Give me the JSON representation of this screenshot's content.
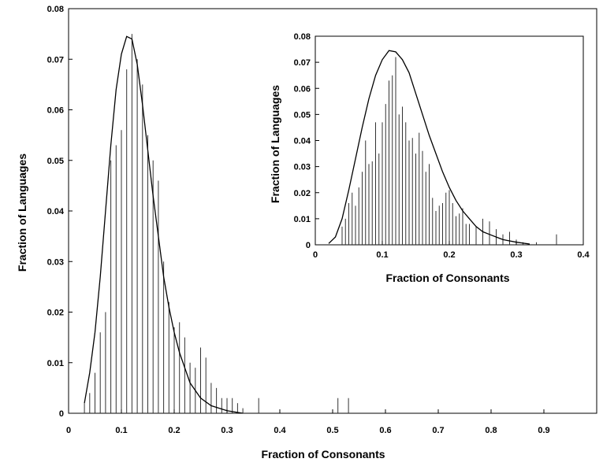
{
  "chart_data": [
    {
      "type": "bar",
      "panel": "main",
      "title": "",
      "xlabel": "Fraction of Consonants",
      "ylabel": "Fraction of Languages",
      "xlim": [
        0,
        1
      ],
      "ylim": [
        0,
        0.08
      ],
      "xticks": [
        "0",
        "0.1",
        "0.2",
        "0.3",
        "0.4",
        "0.5",
        "0.6",
        "0.7",
        "0.8",
        "0.9"
      ],
      "yticks": [
        "0",
        "0.01",
        "0.02",
        "0.03",
        "0.04",
        "0.05",
        "0.06",
        "0.07",
        "0.08"
      ],
      "grid": false,
      "series": [
        {
          "kind": "bars",
          "x": [
            0.03,
            0.04,
            0.05,
            0.06,
            0.07,
            0.08,
            0.09,
            0.1,
            0.11,
            0.12,
            0.13,
            0.14,
            0.15,
            0.16,
            0.17,
            0.18,
            0.19,
            0.2,
            0.21,
            0.22,
            0.23,
            0.24,
            0.25,
            0.26,
            0.27,
            0.28,
            0.29,
            0.3,
            0.31,
            0.32,
            0.33,
            0.36,
            0.51,
            0.53
          ],
          "y": [
            0.002,
            0.004,
            0.008,
            0.016,
            0.02,
            0.05,
            0.053,
            0.056,
            0.068,
            0.075,
            0.07,
            0.065,
            0.055,
            0.05,
            0.046,
            0.03,
            0.022,
            0.017,
            0.018,
            0.015,
            0.01,
            0.009,
            0.013,
            0.011,
            0.006,
            0.005,
            0.003,
            0.003,
            0.003,
            0.002,
            0.001,
            0.003,
            0.003,
            0.003
          ]
        },
        {
          "kind": "line",
          "x": [
            0.03,
            0.04,
            0.05,
            0.06,
            0.07,
            0.08,
            0.09,
            0.1,
            0.11,
            0.12,
            0.13,
            0.14,
            0.15,
            0.16,
            0.17,
            0.18,
            0.19,
            0.2,
            0.21,
            0.22,
            0.23,
            0.25,
            0.27,
            0.3,
            0.33
          ],
          "y": [
            0.002,
            0.008,
            0.016,
            0.027,
            0.04,
            0.053,
            0.064,
            0.071,
            0.0745,
            0.074,
            0.069,
            0.061,
            0.052,
            0.043,
            0.035,
            0.027,
            0.021,
            0.016,
            0.012,
            0.009,
            0.006,
            0.003,
            0.0015,
            0.0005,
            0
          ]
        }
      ]
    },
    {
      "type": "bar",
      "panel": "inset",
      "title": "",
      "xlabel": "Fraction of Consonants",
      "ylabel": "Fraction of Languages",
      "xlim": [
        0,
        0.4
      ],
      "ylim": [
        0,
        0.08
      ],
      "xticks": [
        "0",
        "0.1",
        "0.2",
        "0.3",
        "0.4"
      ],
      "yticks": [
        "0",
        "0.01",
        "0.02",
        "0.03",
        "0.04",
        "0.05",
        "0.06",
        "0.07",
        "0.08"
      ],
      "grid": false,
      "series": [
        {
          "kind": "bars",
          "x": [
            0.04,
            0.045,
            0.05,
            0.055,
            0.06,
            0.065,
            0.07,
            0.075,
            0.08,
            0.085,
            0.09,
            0.095,
            0.1,
            0.105,
            0.11,
            0.115,
            0.12,
            0.125,
            0.13,
            0.135,
            0.14,
            0.145,
            0.15,
            0.155,
            0.16,
            0.165,
            0.17,
            0.175,
            0.18,
            0.185,
            0.19,
            0.195,
            0.2,
            0.205,
            0.21,
            0.215,
            0.22,
            0.225,
            0.23,
            0.24,
            0.25,
            0.26,
            0.27,
            0.28,
            0.29,
            0.3,
            0.31,
            0.33,
            0.36
          ],
          "y": [
            0.007,
            0.01,
            0.016,
            0.02,
            0.015,
            0.022,
            0.028,
            0.04,
            0.031,
            0.032,
            0.047,
            0.035,
            0.047,
            0.054,
            0.063,
            0.065,
            0.072,
            0.05,
            0.053,
            0.047,
            0.04,
            0.041,
            0.035,
            0.043,
            0.036,
            0.028,
            0.031,
            0.018,
            0.013,
            0.015,
            0.016,
            0.02,
            0.021,
            0.016,
            0.011,
            0.012,
            0.014,
            0.008,
            0.008,
            0.007,
            0.01,
            0.009,
            0.006,
            0.004,
            0.005,
            0.002,
            0.001,
            0.001,
            0.004
          ]
        },
        {
          "kind": "line",
          "x": [
            0.02,
            0.03,
            0.04,
            0.05,
            0.06,
            0.07,
            0.08,
            0.09,
            0.1,
            0.11,
            0.12,
            0.13,
            0.14,
            0.15,
            0.16,
            0.17,
            0.18,
            0.19,
            0.2,
            0.21,
            0.22,
            0.23,
            0.24,
            0.25,
            0.26,
            0.28,
            0.3,
            0.32
          ],
          "y": [
            0.0005,
            0.003,
            0.01,
            0.021,
            0.033,
            0.045,
            0.056,
            0.065,
            0.071,
            0.0745,
            0.074,
            0.071,
            0.066,
            0.058,
            0.05,
            0.042,
            0.035,
            0.028,
            0.022,
            0.017,
            0.013,
            0.01,
            0.007,
            0.005,
            0.004,
            0.002,
            0.001,
            0.0003
          ]
        }
      ]
    }
  ]
}
